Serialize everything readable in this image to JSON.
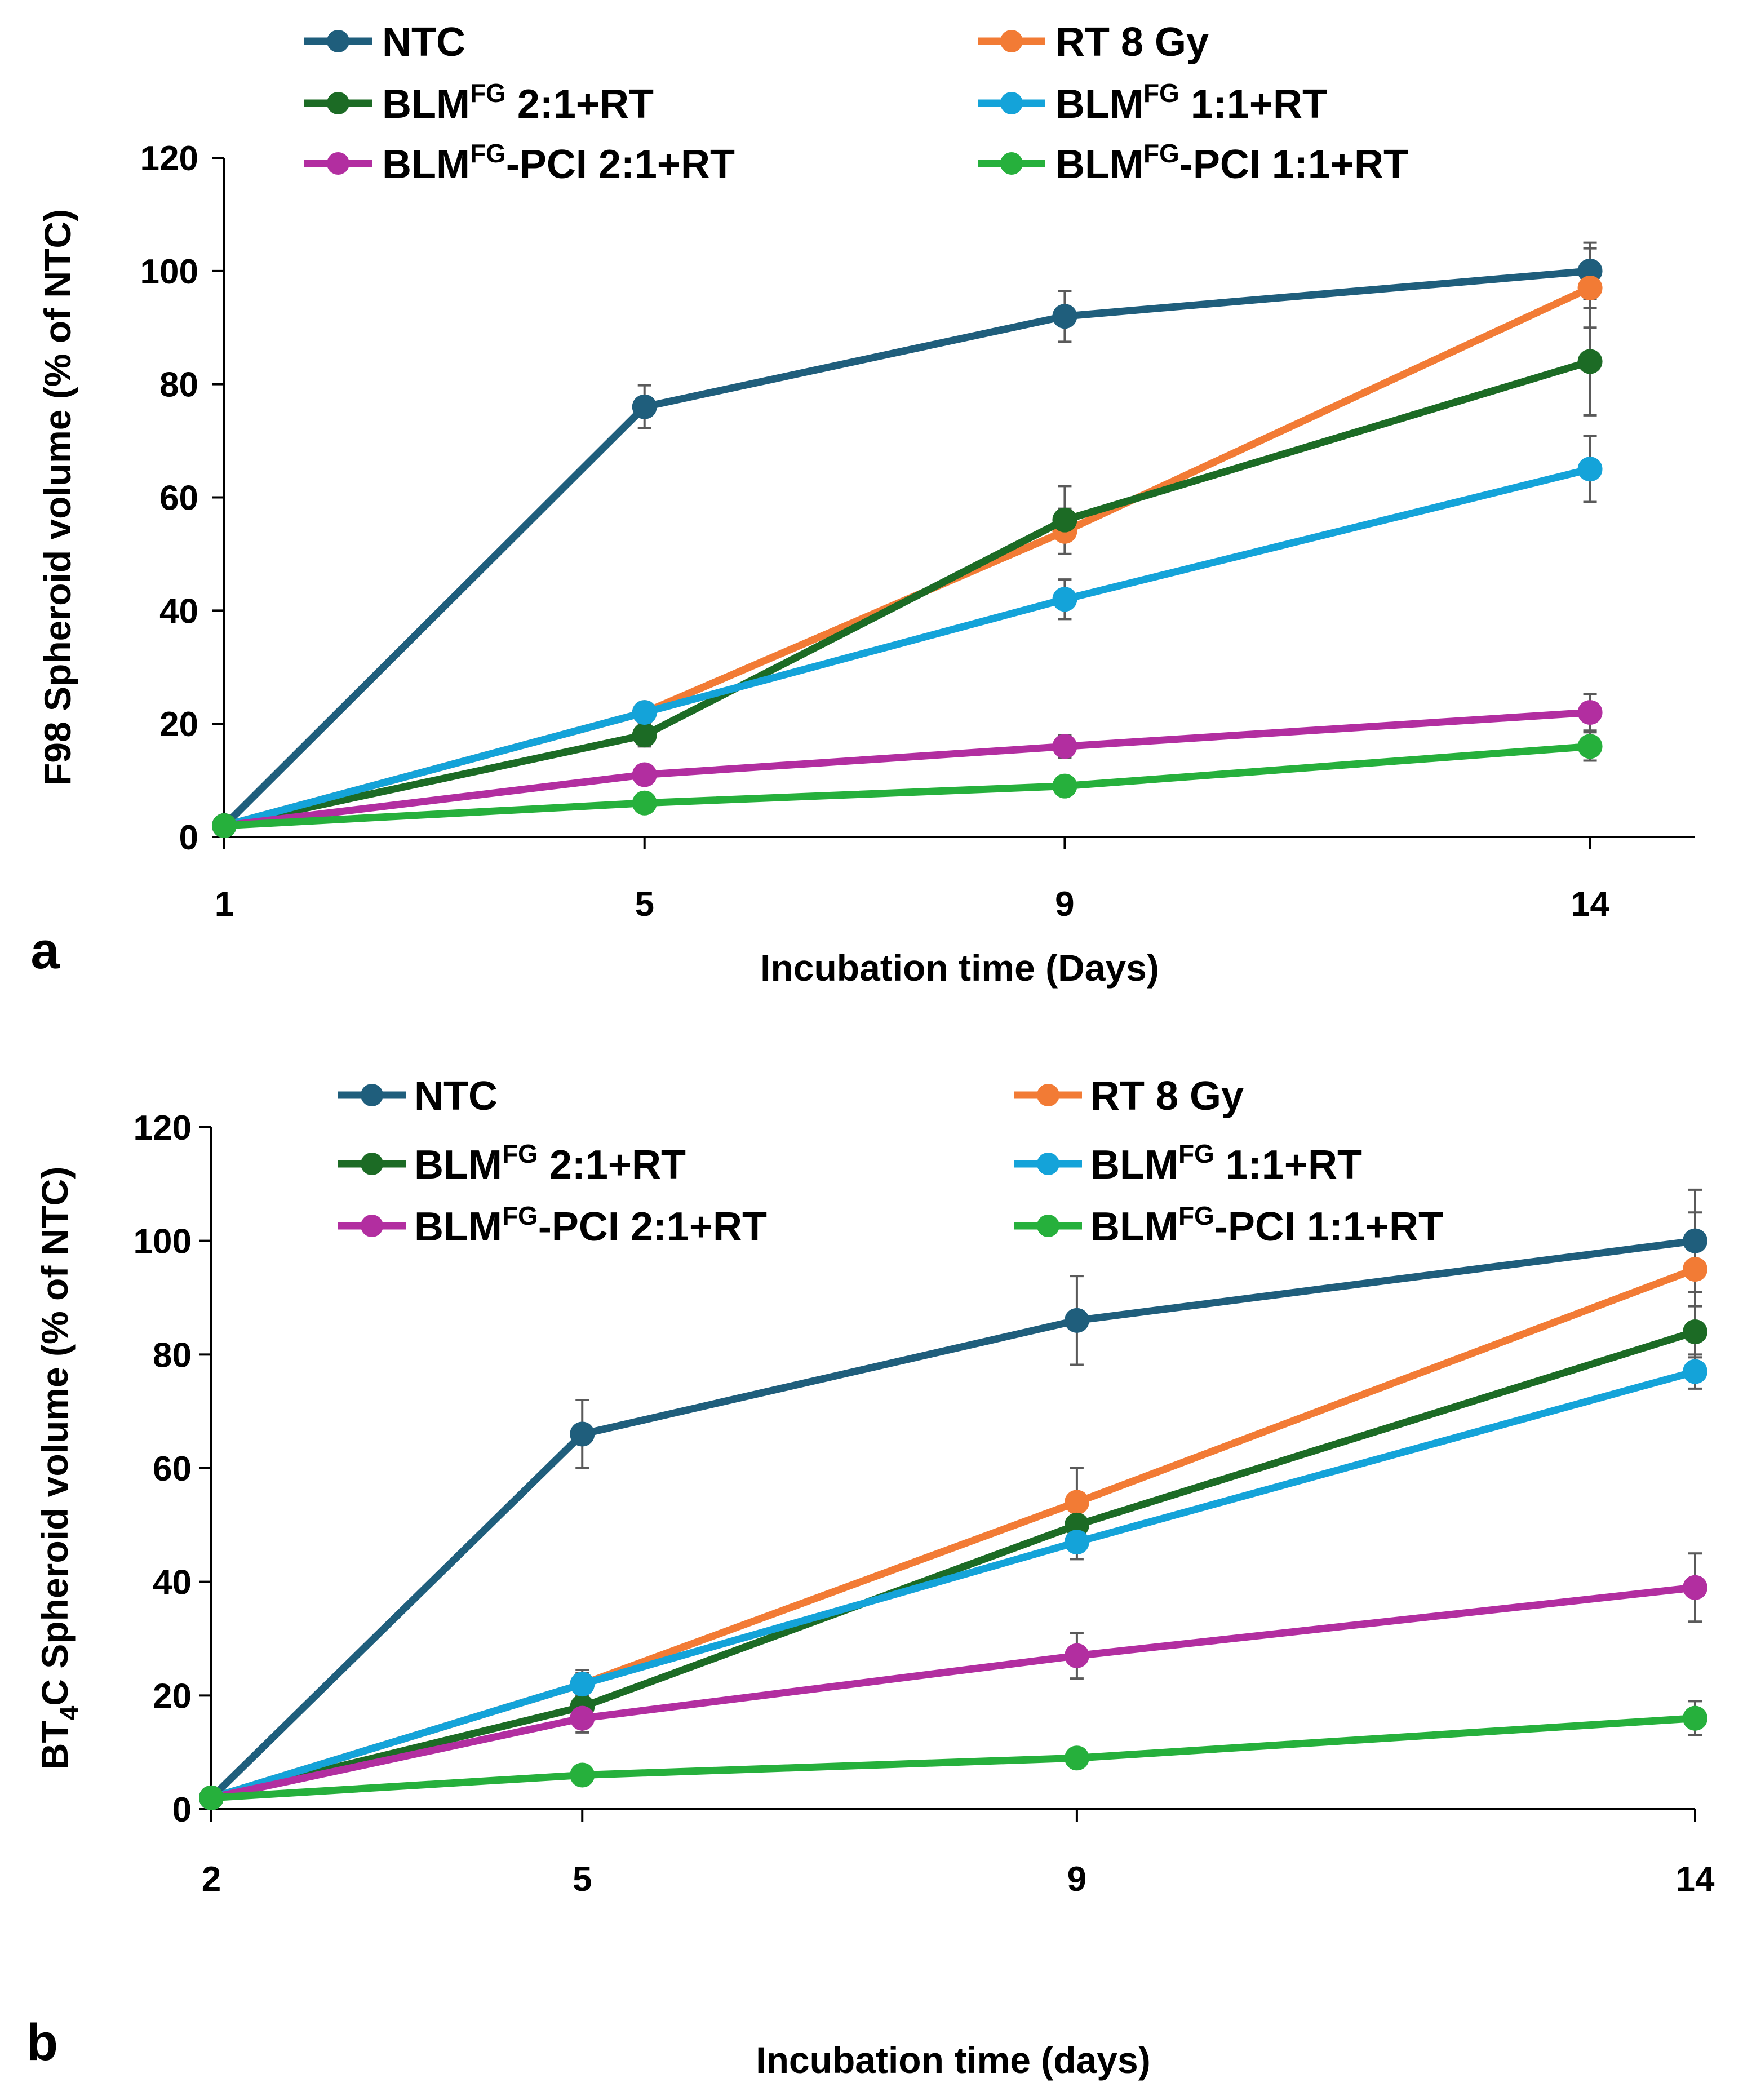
{
  "chart_data": [
    {
      "type": "line",
      "panel_label": "a",
      "title": "",
      "xlabel": "Incubation time  (Days)",
      "ylabel": "F98 Spheroid volume (% of NTC)",
      "x": [
        "1",
        "5",
        "9",
        "14"
      ],
      "ylim": [
        0,
        120
      ],
      "yticks": [
        "0",
        "20",
        "40",
        "60",
        "80",
        "100",
        "120"
      ],
      "grid": false,
      "legend_position": "top",
      "series": [
        {
          "name": "NTC",
          "legend_parts": [
            "NTC"
          ],
          "color": "#1f5e7c",
          "values": [
            2,
            76,
            92,
            100
          ],
          "errors": [
            0,
            3.8,
            4.5,
            5
          ]
        },
        {
          "name": "RT 8 Gy",
          "legend_parts": [
            "RT 8 Gy"
          ],
          "color": "#f27b35",
          "values": [
            2,
            22,
            54,
            97
          ],
          "errors": [
            0,
            1.5,
            4,
            7
          ]
        },
        {
          "name": "BLMFG 2:1+RT",
          "legend_parts": [
            "BLM",
            "FG",
            " 2:1+RT"
          ],
          "color": "#1c6b25",
          "values": [
            2,
            18,
            56,
            84
          ],
          "errors": [
            0,
            2,
            6,
            9.5
          ]
        },
        {
          "name": "BLMFG 1:1+RT",
          "legend_parts": [
            "BLM",
            "FG",
            " 1:1+RT"
          ],
          "color": "#14a3d9",
          "values": [
            2,
            22,
            42,
            65
          ],
          "errors": [
            0,
            1.5,
            3.5,
            5.8
          ]
        },
        {
          "name": "BLMFG-PCI 2:1+RT",
          "legend_parts": [
            "BLM",
            "FG",
            "-PCI 2:1+RT"
          ],
          "color": "#b22ea0",
          "values": [
            2,
            11,
            16,
            22
          ],
          "errors": [
            0,
            1.2,
            2,
            3.2
          ]
        },
        {
          "name": "BLMFG-PCI 1:1+RT",
          "legend_parts": [
            "BLM",
            "FG",
            "-PCI 1:1+RT"
          ],
          "color": "#26b03c",
          "values": [
            2,
            6,
            9,
            16
          ],
          "errors": [
            0,
            0.8,
            1.5,
            2.5
          ]
        }
      ]
    },
    {
      "type": "line",
      "panel_label": "b",
      "title": "",
      "xlabel": "Incubation time (days)",
      "ylabel": "BT4C Spheroid volume (% of NTC)",
      "ylabel_parts": [
        "BT",
        "4",
        "C Spheroid volume (% of NTC)"
      ],
      "x": [
        "2",
        "5",
        "9",
        "14"
      ],
      "ylim": [
        0,
        120
      ],
      "yticks": [
        "0",
        "20",
        "40",
        "60",
        "80",
        "100",
        "120"
      ],
      "grid": false,
      "legend_position": "top",
      "series": [
        {
          "name": "NTC",
          "legend_parts": [
            "NTC"
          ],
          "color": "#1f5e7c",
          "values": [
            2,
            66,
            86,
            100
          ],
          "errors": [
            0,
            6,
            7.8,
            9
          ]
        },
        {
          "name": "RT 8 Gy",
          "legend_parts": [
            "RT 8 Gy"
          ],
          "color": "#f27b35",
          "values": [
            2,
            22,
            54,
            95
          ],
          "errors": [
            0,
            2.5,
            6,
            10
          ]
        },
        {
          "name": "BLMFG 2:1+RT",
          "legend_parts": [
            "BLM",
            "FG",
            " 2:1+RT"
          ],
          "color": "#1c6b25",
          "values": [
            2,
            18,
            50,
            84
          ],
          "errors": [
            0,
            2,
            3.5,
            4.5
          ]
        },
        {
          "name": "BLMFG 1:1+RT",
          "legend_parts": [
            "BLM",
            "FG",
            " 1:1+RT"
          ],
          "color": "#14a3d9",
          "values": [
            2,
            22,
            47,
            77
          ],
          "errors": [
            0,
            2,
            3,
            3
          ]
        },
        {
          "name": "BLMFG-PCI 2:1+RT",
          "legend_parts": [
            "BLM",
            "FG",
            "-PCI 2:1+RT"
          ],
          "color": "#b22ea0",
          "values": [
            2,
            16,
            27,
            39
          ],
          "errors": [
            0,
            2.5,
            4,
            6
          ]
        },
        {
          "name": "BLMFG-PCI 1:1+RT",
          "legend_parts": [
            "BLM",
            "FG",
            "-PCI 1:1+RT"
          ],
          "color": "#26b03c",
          "values": [
            2,
            6,
            9,
            16
          ],
          "errors": [
            0,
            0.8,
            1.5,
            3
          ]
        }
      ]
    }
  ]
}
